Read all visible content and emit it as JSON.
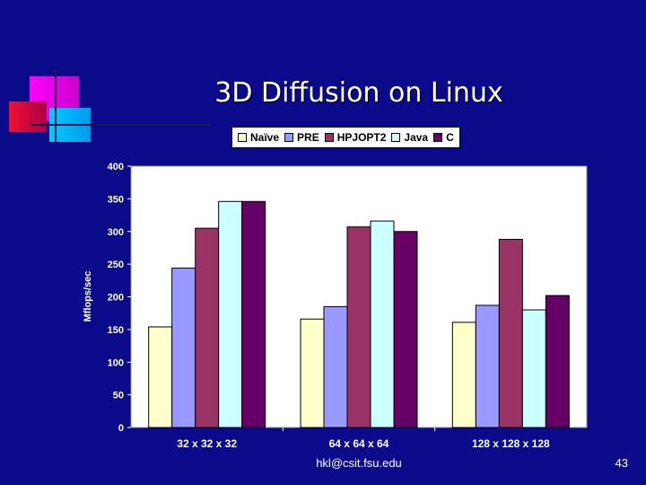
{
  "slide": {
    "title": "3D Diffusion on Linux",
    "footer_email": "hkl@csit.fsu.edu",
    "page_number": "43"
  },
  "colors": {
    "background": "#0a0a8a",
    "plot_area": "#ffffff"
  },
  "chart_data": {
    "type": "bar",
    "title": "",
    "xlabel": "",
    "ylabel": "Mflops/sec",
    "ylim": [
      0,
      400
    ],
    "yticks": [
      0,
      50,
      100,
      150,
      200,
      250,
      300,
      350,
      400
    ],
    "categories": [
      "32 x 32 x 32",
      "64 x 64 x 64",
      "128 x 128 x 128"
    ],
    "series": [
      {
        "name": "Naïve",
        "color": "#ffffcc",
        "values": [
          154,
          166,
          161
        ]
      },
      {
        "name": "PRE",
        "color": "#9999ff",
        "values": [
          244,
          185,
          187
        ]
      },
      {
        "name": "HPJOPT2",
        "color": "#993366",
        "values": [
          305,
          307,
          288
        ]
      },
      {
        "name": "Java",
        "color": "#ccffff",
        "values": [
          346,
          316,
          180
        ]
      },
      {
        "name": "C",
        "color": "#660066",
        "values": [
          346,
          300,
          202
        ]
      }
    ],
    "legend_position": "top",
    "grid": false
  }
}
